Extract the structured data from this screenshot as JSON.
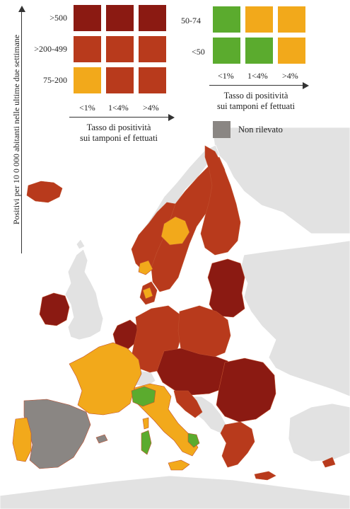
{
  "vertical_axis_label": "Positivi per 10 0 000 abitanti  nelle ultime due settimane",
  "left_legend": {
    "rows": [
      ">500",
      ">200-499",
      "75-200"
    ],
    "columns": [
      "<1%",
      "1<4%",
      ">4%"
    ],
    "x_title_line1": "Tasso di positività",
    "x_title_line2": "sui tamponi ef fettuati",
    "grid_colors": [
      [
        "#8b1a12",
        "#8b1a12",
        "#8b1a12"
      ],
      [
        "#b83a1c",
        "#b83a1c",
        "#b83a1c"
      ],
      [
        "#f2a91b",
        "#b83a1c",
        "#b83a1c"
      ]
    ]
  },
  "right_legend": {
    "rows": [
      "50-74",
      "<50"
    ],
    "columns": [
      "<1%",
      "1<4%",
      ">4%"
    ],
    "x_title_line1": "Tasso di positività",
    "x_title_line2": "sui tamponi ef fettuati",
    "grid_colors": [
      [
        "#5bab2e",
        "#f2a91b",
        "#f2a91b"
      ],
      [
        "#5bab2e",
        "#5bab2e",
        "#f2a91b"
      ]
    ]
  },
  "not_reported": {
    "label": "Non rilevato",
    "color": "#8a8683"
  },
  "colors": {
    "dark_red": "#8b1a12",
    "red": "#b83a1c",
    "orange": "#f2a91b",
    "green": "#5bab2e",
    "grey": "#8a8683",
    "non_eu": "#e2e2e2",
    "sea": "#ffffff"
  }
}
